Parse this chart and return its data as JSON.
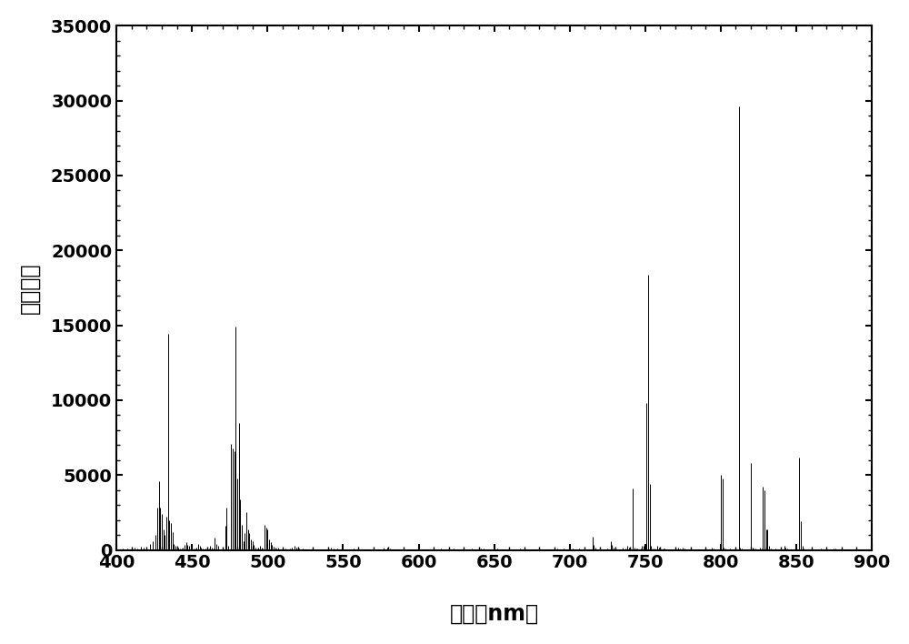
{
  "xlabel_cn": "波长（",
  "xlabel_nm": "nm",
  "xlabel_end": "）",
  "ylabel": "相对强度",
  "xlim": [
    400,
    900
  ],
  "ylim": [
    0,
    35000
  ],
  "xticks": [
    400,
    450,
    500,
    550,
    600,
    650,
    700,
    750,
    800,
    850,
    900
  ],
  "yticks": [
    0,
    5000,
    10000,
    15000,
    20000,
    25000,
    30000,
    35000
  ],
  "line_color": "#000000",
  "background_color": "#ffffff",
  "peaks": [
    [
      404,
      80
    ],
    [
      407,
      100
    ],
    [
      410,
      130
    ],
    [
      412,
      180
    ],
    [
      414,
      100
    ],
    [
      416,
      200
    ],
    [
      418,
      150
    ],
    [
      420,
      180
    ],
    [
      422,
      400
    ],
    [
      424,
      600
    ],
    [
      426,
      1000
    ],
    [
      427,
      2800
    ],
    [
      428,
      4600
    ],
    [
      429,
      2800
    ],
    [
      430,
      2400
    ],
    [
      431,
      1400
    ],
    [
      432,
      1000
    ],
    [
      433,
      2200
    ],
    [
      434,
      14400
    ],
    [
      435,
      2000
    ],
    [
      436,
      1800
    ],
    [
      437,
      1200
    ],
    [
      438,
      400
    ],
    [
      439,
      250
    ],
    [
      440,
      250
    ],
    [
      441,
      150
    ],
    [
      442,
      120
    ],
    [
      443,
      80
    ],
    [
      444,
      150
    ],
    [
      445,
      350
    ],
    [
      446,
      500
    ],
    [
      447,
      350
    ],
    [
      448,
      250
    ],
    [
      449,
      150
    ],
    [
      450,
      200
    ],
    [
      451,
      120
    ],
    [
      452,
      80
    ],
    [
      453,
      150
    ],
    [
      454,
      400
    ],
    [
      455,
      250
    ],
    [
      456,
      150
    ],
    [
      457,
      120
    ],
    [
      459,
      80
    ],
    [
      460,
      150
    ],
    [
      461,
      100
    ],
    [
      462,
      250
    ],
    [
      463,
      180
    ],
    [
      464,
      100
    ],
    [
      465,
      800
    ],
    [
      466,
      400
    ],
    [
      467,
      250
    ],
    [
      470,
      150
    ],
    [
      472,
      1600
    ],
    [
      473,
      2800
    ],
    [
      474,
      250
    ],
    [
      476,
      7100
    ],
    [
      477,
      6800
    ],
    [
      478,
      6600
    ],
    [
      479,
      14900
    ],
    [
      480,
      4800
    ],
    [
      481,
      8500
    ],
    [
      482,
      3400
    ],
    [
      483,
      1700
    ],
    [
      484,
      600
    ],
    [
      485,
      1100
    ],
    [
      486,
      2500
    ],
    [
      487,
      1400
    ],
    [
      488,
      1100
    ],
    [
      489,
      700
    ],
    [
      490,
      600
    ],
    [
      491,
      350
    ],
    [
      492,
      180
    ],
    [
      493,
      100
    ],
    [
      494,
      130
    ],
    [
      495,
      250
    ],
    [
      496,
      180
    ],
    [
      497,
      100
    ],
    [
      498,
      1700
    ],
    [
      499,
      1500
    ],
    [
      500,
      1400
    ],
    [
      501,
      700
    ],
    [
      502,
      500
    ],
    [
      503,
      350
    ],
    [
      504,
      200
    ],
    [
      505,
      180
    ],
    [
      506,
      100
    ],
    [
      507,
      130
    ],
    [
      510,
      150
    ],
    [
      512,
      80
    ],
    [
      515,
      100
    ],
    [
      516,
      180
    ],
    [
      518,
      250
    ],
    [
      519,
      180
    ],
    [
      520,
      100
    ],
    [
      521,
      80
    ],
    [
      523,
      120
    ],
    [
      530,
      80
    ],
    [
      540,
      120
    ],
    [
      542,
      180
    ],
    [
      544,
      100
    ],
    [
      546,
      80
    ],
    [
      557,
      80
    ],
    [
      560,
      80
    ],
    [
      577,
      180
    ],
    [
      579,
      180
    ],
    [
      581,
      80
    ],
    [
      590,
      80
    ],
    [
      595,
      60
    ],
    [
      600,
      80
    ],
    [
      605,
      60
    ],
    [
      615,
      80
    ],
    [
      618,
      60
    ],
    [
      623,
      80
    ],
    [
      635,
      80
    ],
    [
      637,
      60
    ],
    [
      640,
      120
    ],
    [
      641,
      120
    ],
    [
      643,
      80
    ],
    [
      650,
      80
    ],
    [
      652,
      80
    ],
    [
      654,
      60
    ],
    [
      660,
      80
    ],
    [
      665,
      60
    ],
    [
      667,
      80
    ],
    [
      670,
      80
    ],
    [
      680,
      60
    ],
    [
      690,
      80
    ],
    [
      692,
      80
    ],
    [
      694,
      60
    ],
    [
      696,
      80
    ],
    [
      700,
      150
    ],
    [
      702,
      80
    ],
    [
      706,
      80
    ],
    [
      710,
      80
    ],
    [
      712,
      60
    ],
    [
      715,
      900
    ],
    [
      716,
      350
    ],
    [
      717,
      150
    ],
    [
      720,
      80
    ],
    [
      725,
      80
    ],
    [
      727,
      600
    ],
    [
      728,
      350
    ],
    [
      729,
      150
    ],
    [
      730,
      80
    ],
    [
      735,
      150
    ],
    [
      737,
      80
    ],
    [
      738,
      250
    ],
    [
      739,
      180
    ],
    [
      740,
      100
    ],
    [
      742,
      4100
    ],
    [
      743,
      180
    ],
    [
      744,
      80
    ],
    [
      745,
      80
    ],
    [
      747,
      100
    ],
    [
      748,
      300
    ],
    [
      749,
      250
    ],
    [
      750,
      180
    ],
    [
      751,
      9800
    ],
    [
      752,
      18400
    ],
    [
      753,
      4400
    ],
    [
      754,
      250
    ],
    [
      755,
      100
    ],
    [
      756,
      80
    ],
    [
      758,
      250
    ],
    [
      759,
      150
    ],
    [
      760,
      80
    ],
    [
      762,
      80
    ],
    [
      763,
      80
    ],
    [
      772,
      150
    ],
    [
      773,
      80
    ],
    [
      775,
      150
    ],
    [
      776,
      80
    ],
    [
      780,
      80
    ],
    [
      794,
      180
    ],
    [
      795,
      80
    ],
    [
      800,
      5000
    ],
    [
      801,
      4800
    ],
    [
      802,
      180
    ],
    [
      803,
      80
    ],
    [
      806,
      80
    ],
    [
      810,
      100
    ],
    [
      812,
      29600
    ],
    [
      813,
      180
    ],
    [
      814,
      80
    ],
    [
      820,
      5800
    ],
    [
      821,
      180
    ],
    [
      822,
      80
    ],
    [
      823,
      80
    ],
    [
      826,
      180
    ],
    [
      827,
      80
    ],
    [
      828,
      4200
    ],
    [
      829,
      4000
    ],
    [
      830,
      1400
    ],
    [
      831,
      1400
    ],
    [
      832,
      280
    ],
    [
      833,
      80
    ],
    [
      836,
      80
    ],
    [
      840,
      80
    ],
    [
      842,
      250
    ],
    [
      843,
      180
    ],
    [
      844,
      80
    ],
    [
      852,
      6200
    ],
    [
      853,
      1900
    ],
    [
      854,
      300
    ],
    [
      855,
      80
    ],
    [
      860,
      80
    ],
    [
      866,
      80
    ],
    [
      870,
      80
    ],
    [
      875,
      80
    ],
    [
      876,
      80
    ]
  ]
}
